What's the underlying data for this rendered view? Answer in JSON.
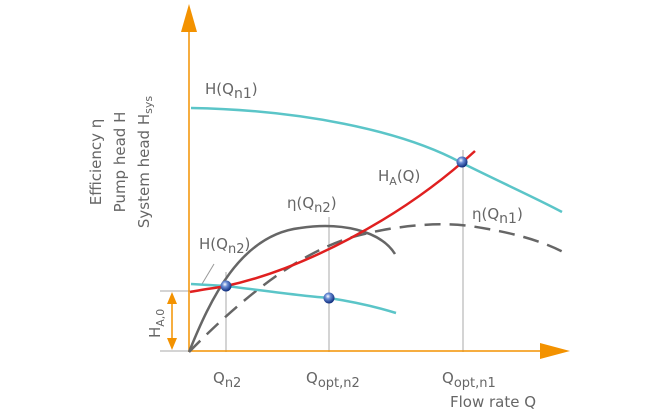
{
  "colors": {
    "axis": "#f39200",
    "pump_curve": "#5bc5c8",
    "system_curve": "#e02020",
    "efficiency": "#666666",
    "guide": "#aaaaaa"
  },
  "axes": {
    "y_label_lines": [
      "Efficiency η",
      "Pump head H",
      "System head H"
    ],
    "y_label_sys_sub": "sys",
    "x_label": "Flow rate Q"
  },
  "curves": {
    "h_qn1": {
      "main": "H(Q",
      "sub": "n1",
      "end": ")"
    },
    "h_qn2": {
      "main": "H(Q",
      "sub": "n2",
      "end": ")"
    },
    "ha_q": {
      "main": "H",
      "sub": "A",
      "end": "(Q)"
    },
    "eta_qn2": {
      "main": "η(Q",
      "sub": "n2",
      "end": ")"
    },
    "eta_qn1": {
      "main": "η(Q",
      "sub": "n1",
      "end": ")"
    }
  },
  "ha0": {
    "main": "H",
    "sub": "A,0"
  },
  "x_ticks": [
    {
      "main": "Q",
      "sub": "n2"
    },
    {
      "main": "Q",
      "sub": "opt,n2"
    },
    {
      "main": "Q",
      "sub": "opt,n1"
    }
  ]
}
